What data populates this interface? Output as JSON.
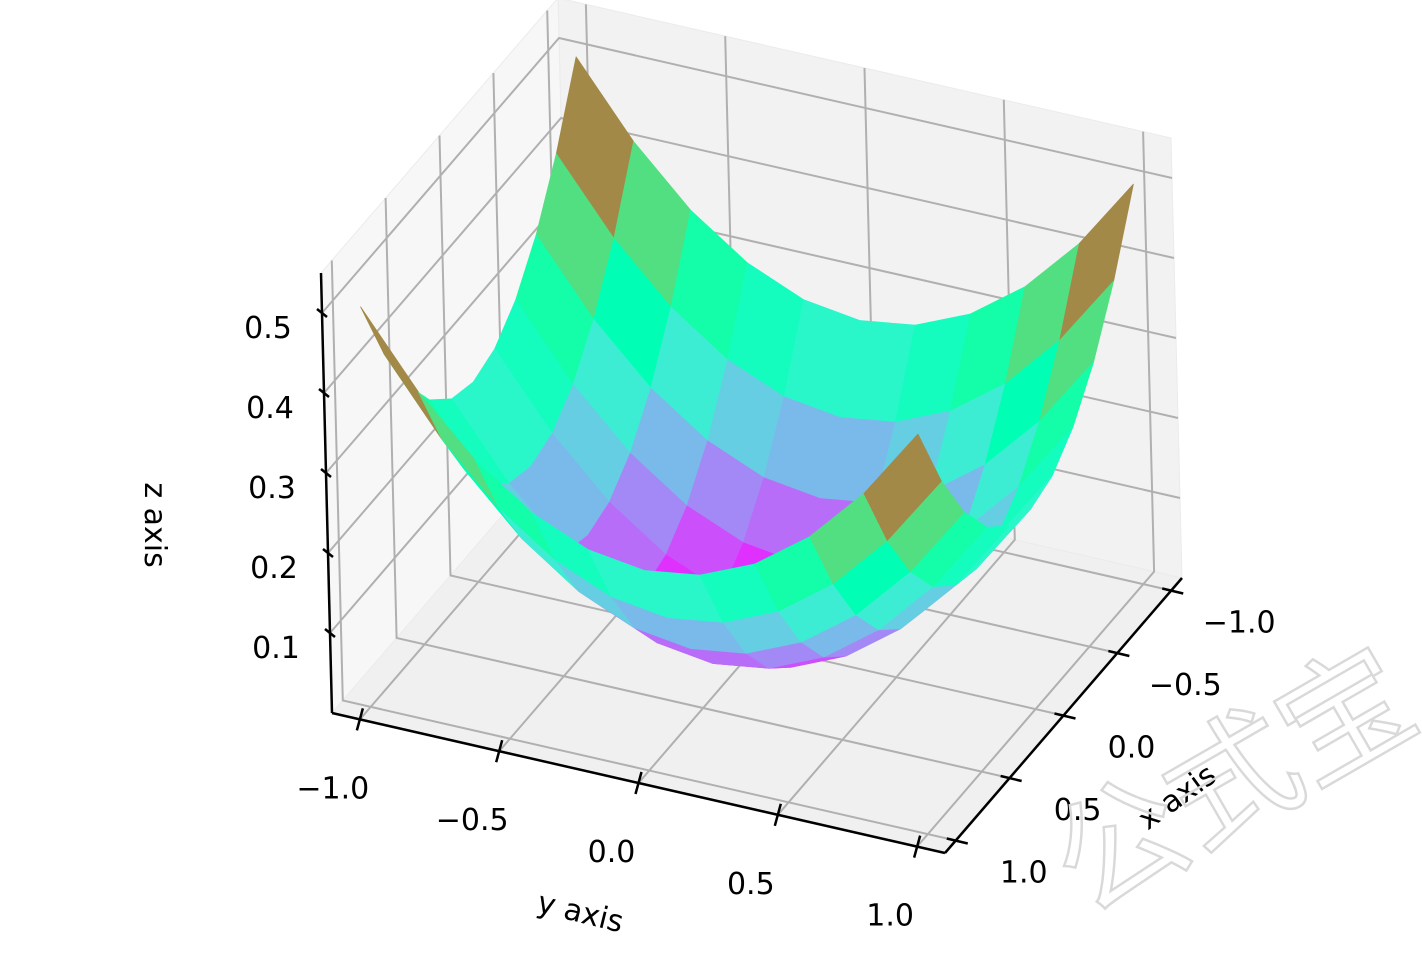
{
  "chart_data": {
    "type": "surface3d",
    "function": "z = 0.25*(x^2 + y^2)",
    "colormap": "rainbow",
    "grid": true,
    "x": [
      -1.0,
      -0.8,
      -0.6,
      -0.4,
      -0.2,
      0.0,
      0.2,
      0.4,
      0.6,
      0.8,
      1.0
    ],
    "y": [
      -1.0,
      -0.8,
      -0.6,
      -0.4,
      -0.2,
      0.0,
      0.2,
      0.4,
      0.6,
      0.8,
      1.0
    ],
    "xlabel": "x axis",
    "ylabel": "y axis",
    "zlabel": "z axis",
    "xticks": [
      "−1.0",
      "−0.5",
      "0.0",
      "0.5",
      "1.0"
    ],
    "yticks": [
      "−1.0",
      "−0.5",
      "0.0",
      "0.5",
      "1.0"
    ],
    "zticks": [
      "0.1",
      "0.2",
      "0.3",
      "0.4",
      "0.5"
    ],
    "xlim": [
      -1.1,
      1.1
    ],
    "ylim": [
      -1.1,
      1.1
    ],
    "zlim": [
      0.0,
      0.55
    ]
  },
  "watermark": "公式宝"
}
